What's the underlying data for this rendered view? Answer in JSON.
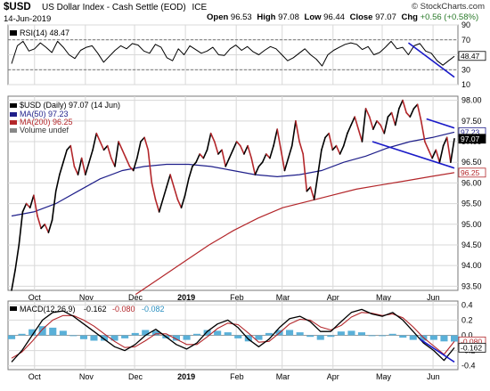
{
  "header": {
    "symbol": "$USD",
    "name": "US Dollar Index - Cash Settle (EOD)",
    "exchange": "ICE",
    "date": "14-Jun-2019",
    "open_label": "Open",
    "open": "96.53",
    "high_label": "High",
    "high": "97.08",
    "low_label": "Low",
    "low": "96.44",
    "close_label": "Close",
    "close": "97.07",
    "chg_label": "Chg",
    "chg": "+0.56 (+0.58%)",
    "copyright": "© StockCharts.com",
    "chg_color": "#2a7a2a"
  },
  "chart_data": [
    {
      "type": "line",
      "panel": "RSI",
      "legend": "RSI(14) 48.47",
      "y_ticks": [
        10,
        30,
        50,
        70,
        90
      ],
      "ylim": [
        10,
        90
      ],
      "overbought": 70,
      "oversold": 30,
      "last_value_label": "48.47",
      "trendline": {
        "from": [
          "2019-05-17",
          66
        ],
        "to": [
          "2019-06-14",
          20
        ]
      },
      "series": [
        {
          "color": "#000000",
          "values": [
            38,
            62,
            68,
            55,
            58,
            66,
            60,
            53,
            68,
            60,
            50,
            45,
            56,
            60,
            62,
            52,
            40,
            48,
            56,
            62,
            58,
            65,
            63,
            55,
            52,
            64,
            60,
            46,
            42,
            58,
            50,
            62,
            57,
            52,
            55,
            60,
            50,
            49,
            58,
            63,
            56,
            61,
            54,
            50,
            56,
            61,
            58,
            50,
            42,
            46,
            52,
            58,
            50,
            44,
            35,
            50,
            56,
            60,
            64,
            66,
            64,
            57,
            61,
            50,
            53,
            60,
            68,
            58,
            60,
            50,
            62,
            65,
            55,
            52,
            42,
            36,
            42,
            48
          ]
        }
      ]
    },
    {
      "type": "line",
      "panel": "Price",
      "legend": [
        "$USD (Daily) 97.07 (14 Jun)",
        "MA(50) 97.23",
        "MA(200) 96.25",
        "Volume undef"
      ],
      "y_ticks": [
        93.5,
        94.0,
        94.5,
        95.0,
        95.5,
        96.0,
        96.5,
        97.0,
        97.5,
        98.0
      ],
      "ylim": [
        93.4,
        98.1
      ],
      "x_ticks": [
        "Oct",
        "Nov",
        "Dec",
        "2019",
        "Feb",
        "Mar",
        "Apr",
        "May",
        "Jun"
      ],
      "x_tick_dates": [
        "2018-10-01",
        "2018-11-01",
        "2018-12-01",
        "2019-01-01",
        "2019-02-01",
        "2019-03-01",
        "2019-04-01",
        "2019-05-01",
        "2019-06-01"
      ],
      "x_start": "2018-09-17",
      "x_end": "2019-06-14",
      "price_labels": [
        {
          "text": "97.23",
          "color": "#1f1f8a"
        },
        {
          "text": "97.07",
          "color": "#000000"
        },
        {
          "text": "96.25",
          "color": "#b3262a"
        }
      ],
      "trendlines": [
        {
          "from": [
            "2019-04-25",
            97.0
          ],
          "to": [
            "2019-06-14",
            96.36
          ]
        },
        {
          "from": [
            "2019-05-28",
            97.55
          ],
          "to": [
            "2019-06-14",
            97.33
          ]
        }
      ],
      "series": [
        {
          "name": "$USD (Daily) 97.07 (14 Jun)",
          "up_color": "#000000",
          "down_color": "#b3262a",
          "values": [
            93.4,
            93.9,
            94.5,
            95.3,
            95.5,
            95.4,
            95.7,
            95.2,
            94.9,
            95.0,
            94.8,
            95.1,
            95.8,
            96.2,
            96.5,
            96.8,
            96.9,
            96.4,
            96.2,
            96.6,
            96.2,
            96.5,
            96.8,
            97.2,
            97.0,
            96.8,
            96.9,
            96.6,
            96.4,
            97.0,
            96.8,
            96.6,
            96.4,
            96.3,
            96.6,
            97.0,
            97.1,
            96.8,
            96.0,
            95.6,
            95.3,
            95.6,
            95.9,
            96.2,
            95.9,
            95.6,
            95.4,
            95.7,
            96.1,
            96.4,
            96.5,
            96.7,
            96.6,
            96.8,
            97.2,
            97.0,
            96.7,
            96.8,
            96.4,
            96.6,
            96.8,
            97.0,
            96.9,
            96.7,
            96.9,
            96.6,
            96.2,
            96.4,
            96.5,
            96.7,
            96.6,
            96.9,
            97.3,
            96.8,
            96.3,
            96.6,
            96.9,
            97.5,
            97.0,
            96.7,
            95.8,
            95.9,
            95.6,
            96.2,
            96.8,
            97.1,
            97.2,
            96.8,
            96.9,
            96.7,
            96.9,
            97.2,
            97.4,
            97.6,
            97.3,
            97.0,
            97.8,
            97.6,
            97.3,
            97.5,
            97.4,
            97.2,
            97.6,
            97.7,
            97.4,
            97.8,
            98.0,
            97.7,
            97.6,
            97.8,
            97.9,
            97.5,
            97.0,
            96.8,
            96.6,
            96.8,
            96.5,
            96.9,
            97.1,
            96.5,
            97.07
          ]
        },
        {
          "name": "MA(50) 97.23",
          "color": "#1f1f8a",
          "values": [
            95.2,
            95.3,
            95.5,
            95.8,
            96.1,
            96.3,
            96.4,
            96.45,
            96.45,
            96.4,
            96.3,
            96.2,
            96.15,
            96.2,
            96.3,
            96.5,
            96.65,
            96.85,
            97.0,
            97.1,
            97.23
          ]
        },
        {
          "name": "MA(200) 96.25",
          "color": "#b3262a",
          "values": [
            93.3,
            93.7,
            94.1,
            94.5,
            94.85,
            95.15,
            95.4,
            95.55,
            95.7,
            95.85,
            95.95,
            96.05,
            96.15,
            96.25
          ]
        }
      ]
    },
    {
      "type": "line",
      "panel": "MACD",
      "legend": {
        "label": "MACD(12,26,9)",
        "macd": "-0.162",
        "signal": "-0.080",
        "hist": "-0.082"
      },
      "y_ticks": [
        -0.4,
        -0.2,
        0.0,
        0.2,
        0.4
      ],
      "y_tick_labels": [
        "-0.4",
        "-0.2",
        "0.0",
        "0.2",
        "0.4"
      ],
      "ylim": [
        -0.45,
        0.45
      ],
      "x_ticks": [
        "Oct",
        "Nov",
        "Dec",
        "2019",
        "Feb",
        "Mar",
        "Apr",
        "May",
        "Jun"
      ],
      "value_labels": [
        {
          "text": "-0.080",
          "color": "#b3262a"
        },
        {
          "text": "-0.162",
          "color": "#000000"
        }
      ],
      "trendline": {
        "from": [
          "2019-05-24",
          -0.05
        ],
        "to": [
          "2019-06-14",
          -0.35
        ]
      },
      "series": [
        {
          "name": "MACD",
          "color": "#000000",
          "values": [
            -0.35,
            -0.2,
            0.0,
            0.2,
            0.3,
            0.32,
            0.25,
            0.15,
            0.05,
            -0.05,
            -0.15,
            -0.2,
            -0.12,
            0.0,
            0.08,
            -0.02,
            -0.12,
            -0.18,
            -0.1,
            0.05,
            0.15,
            0.2,
            0.1,
            -0.05,
            -0.15,
            -0.05,
            0.1,
            0.22,
            0.25,
            0.18,
            0.05,
            0.05,
            0.18,
            0.3,
            0.34,
            0.28,
            0.25,
            0.3,
            0.2,
            0.05,
            -0.1,
            -0.2,
            -0.33,
            -0.162
          ]
        },
        {
          "name": "Signal",
          "color": "#b3262a",
          "values": [
            -0.3,
            -0.22,
            -0.08,
            0.08,
            0.2,
            0.26,
            0.26,
            0.2,
            0.12,
            0.02,
            -0.08,
            -0.16,
            -0.15,
            -0.07,
            0.02,
            0.02,
            -0.05,
            -0.12,
            -0.12,
            -0.02,
            0.09,
            0.16,
            0.14,
            0.03,
            -0.09,
            -0.08,
            0.03,
            0.15,
            0.21,
            0.2,
            0.11,
            0.07,
            0.13,
            0.24,
            0.3,
            0.29,
            0.26,
            0.28,
            0.23,
            0.11,
            -0.03,
            -0.14,
            -0.25,
            -0.08
          ]
        },
        {
          "name": "Histogram",
          "color": "#5ab0d8",
          "values": [
            -0.05,
            0.02,
            0.08,
            0.12,
            0.1,
            0.06,
            -0.01,
            -0.05,
            -0.07,
            -0.07,
            -0.07,
            -0.04,
            0.03,
            0.07,
            0.06,
            -0.04,
            -0.07,
            -0.06,
            0.02,
            0.07,
            0.06,
            0.04,
            -0.04,
            -0.08,
            -0.06,
            0.03,
            0.07,
            0.07,
            0.04,
            -0.02,
            -0.06,
            -0.02,
            0.05,
            0.06,
            0.04,
            -0.01,
            -0.01,
            0.02,
            -0.03,
            -0.06,
            -0.07,
            -0.06,
            -0.08,
            -0.082
          ]
        }
      ]
    }
  ],
  "colors": {
    "panel_border": "#7a7a7a",
    "grid": "#d8d8d8",
    "trendline": "#1a1ac8",
    "overbought_line": "#555555"
  }
}
